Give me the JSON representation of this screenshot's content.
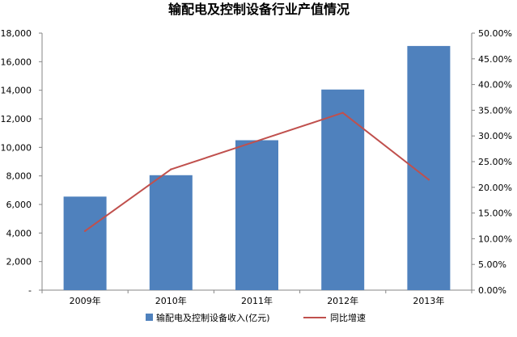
{
  "chart_data": {
    "type": "bar+line",
    "title": "输配电及控制设备行业产值情况",
    "categories": [
      "2009年",
      "2010年",
      "2011年",
      "2012年",
      "2013年"
    ],
    "series": [
      {
        "name": "输配电及控制设备收入(亿元)",
        "type": "bar",
        "axis": "left",
        "values": [
          6550,
          8050,
          10500,
          14050,
          17100
        ]
      },
      {
        "name": "同比增速",
        "type": "line",
        "axis": "right",
        "values": [
          0.115,
          0.235,
          0.29,
          0.345,
          0.215
        ]
      }
    ],
    "y_left": {
      "min": 0,
      "max": 18000,
      "step": 2000,
      "tick_labels": [
        "-",
        "2,000",
        "4,000",
        "6,000",
        "8,000",
        "10,000",
        "12,000",
        "14,000",
        "16,000",
        "18,000"
      ]
    },
    "y_right": {
      "min": 0,
      "max": 0.5,
      "step": 0.05,
      "tick_labels": [
        "0.00%",
        "5.00%",
        "10.00%",
        "15.00%",
        "20.00%",
        "25.00%",
        "30.00%",
        "35.00%",
        "40.00%",
        "45.00%",
        "50.00%"
      ]
    },
    "grid": false,
    "legend_position": "bottom",
    "colors": {
      "bar": "#4f81bd",
      "line": "#c0504d",
      "axis": "#868686"
    }
  }
}
